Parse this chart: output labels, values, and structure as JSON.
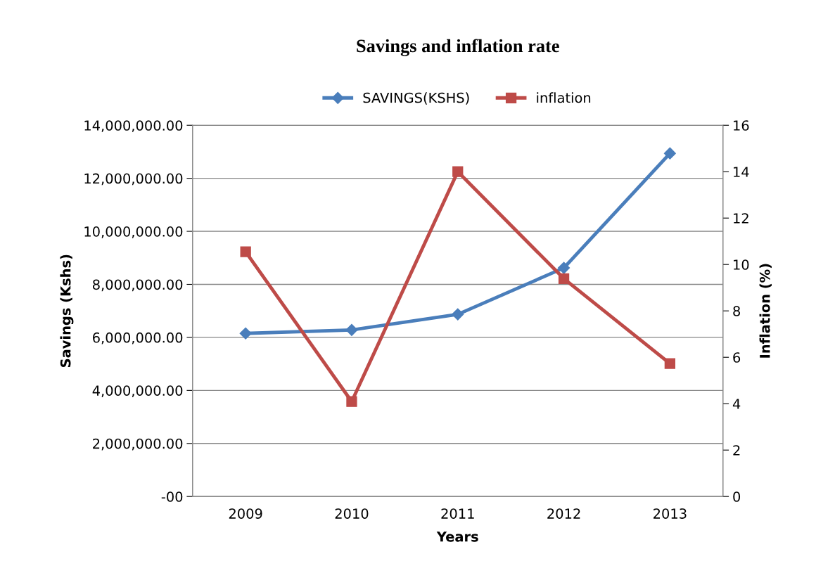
{
  "chart_data": {
    "type": "line",
    "title": "Savings and inflation rate",
    "xlabel": "Years",
    "ylabel": "Savings (Kshs)",
    "y2label": "Inflation (%)",
    "categories": [
      "2009",
      "2010",
      "2011",
      "2012",
      "2013"
    ],
    "series": [
      {
        "name": "SAVINGS(KSHS)",
        "color": "#4a7ebb",
        "marker": "diamond",
        "values": [
          6150000,
          6280000,
          6870000,
          8620000,
          12940000
        ]
      },
      {
        "name": "inflation",
        "color": "#be4b48",
        "marker": "square",
        "axis": "y2",
        "values": [
          10.55,
          4.09,
          14.0,
          9.39,
          5.73
        ]
      }
    ],
    "ylim": [
      0,
      14000000
    ],
    "yticks": [
      {
        "value": 0,
        "label": "-00"
      },
      {
        "value": 2000000,
        "label": "2,000,000.00"
      },
      {
        "value": 4000000,
        "label": "4,000,000.00"
      },
      {
        "value": 6000000,
        "label": "6,000,000.00"
      },
      {
        "value": 8000000,
        "label": "8,000,000.00"
      },
      {
        "value": 10000000,
        "label": "10,000,000.00"
      },
      {
        "value": 12000000,
        "label": "12,000,000.00"
      },
      {
        "value": 14000000,
        "label": "14,000,000.00"
      }
    ],
    "y2lim": [
      0,
      16
    ],
    "y2ticks": [
      0,
      2,
      4,
      6,
      8,
      10,
      12,
      14,
      16
    ],
    "grid": "y",
    "legend": "top"
  }
}
